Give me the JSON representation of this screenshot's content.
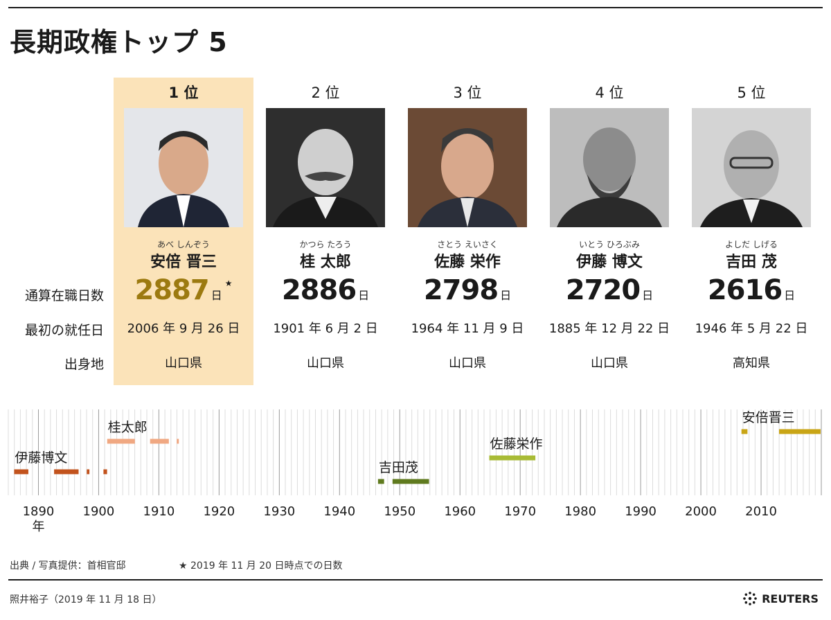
{
  "title": "長期政権トップ 5",
  "row_labels": {
    "days": "通算在職日数",
    "first_date": "最初の就任日",
    "birthplace": "出身地"
  },
  "ranks": [
    {
      "rank": "1 位",
      "ruby": "あべ しんぞう",
      "name": "安倍 晋三",
      "days": "2887",
      "unit": "日",
      "mark": "★",
      "first_date": "2006 年 9 月 26 日",
      "birthplace": "山口県"
    },
    {
      "rank": "2 位",
      "ruby": "かつら たろう",
      "name": "桂 太郎",
      "days": "2886",
      "unit": "日",
      "mark": "",
      "first_date": "1901 年 6 月 2 日",
      "birthplace": "山口県"
    },
    {
      "rank": "3 位",
      "ruby": "さとう えいさく",
      "name": "佐藤 栄作",
      "days": "2798",
      "unit": "日",
      "mark": "",
      "first_date": "1964 年 11 月 9 日",
      "birthplace": "山口県"
    },
    {
      "rank": "4 位",
      "ruby": "いとう ひろぶみ",
      "name": "伊藤 博文",
      "days": "2720",
      "unit": "日",
      "mark": "",
      "first_date": "1885 年 12 月 22 日",
      "birthplace": "山口県"
    },
    {
      "rank": "5 位",
      "ruby": "よしだ しげる",
      "name": "吉田 茂",
      "days": "2616",
      "unit": "日",
      "mark": "",
      "first_date": "1946 年 5 月 22 日",
      "birthplace": "高知県"
    }
  ],
  "chart_data": {
    "type": "timeline",
    "x_range": [
      1885,
      2020
    ],
    "x_ticks": [
      1890,
      1900,
      1910,
      1920,
      1930,
      1940,
      1950,
      1960,
      1970,
      1980,
      1990,
      2000,
      2010
    ],
    "x_unit_label": "年",
    "gridlines": "yearly",
    "series": [
      {
        "name": "伊藤博文",
        "color": "#c2531d",
        "periods": [
          [
            1885.97,
            1888.33
          ],
          [
            1892.6,
            1896.67
          ],
          [
            1898.03,
            1898.47
          ],
          [
            1900.8,
            1901.4
          ]
        ]
      },
      {
        "name": "桂太郎",
        "color": "#f0a882",
        "periods": [
          [
            1901.42,
            1906.02
          ],
          [
            1908.54,
            1911.66
          ],
          [
            1912.97,
            1913.2
          ]
        ]
      },
      {
        "name": "吉田茂",
        "color": "#5f7a1e",
        "periods": [
          [
            1946.39,
            1947.4
          ],
          [
            1948.8,
            1954.86
          ]
        ]
      },
      {
        "name": "佐藤栄作",
        "color": "#a8bb35",
        "periods": [
          [
            1964.86,
            1972.52
          ]
        ]
      },
      {
        "name": "安倍晋三",
        "color": "#c9a516",
        "periods": [
          [
            2006.74,
            2007.74
          ],
          [
            2012.98,
            2019.88
          ]
        ]
      }
    ]
  },
  "footer": {
    "source": "出典 / 写真提供：首相官邸",
    "note": "★ 2019 年 11 月 20 日時点での日数",
    "credit": "照井裕子（2019 年 11 月 18 日）",
    "brand": "REUTERS"
  }
}
